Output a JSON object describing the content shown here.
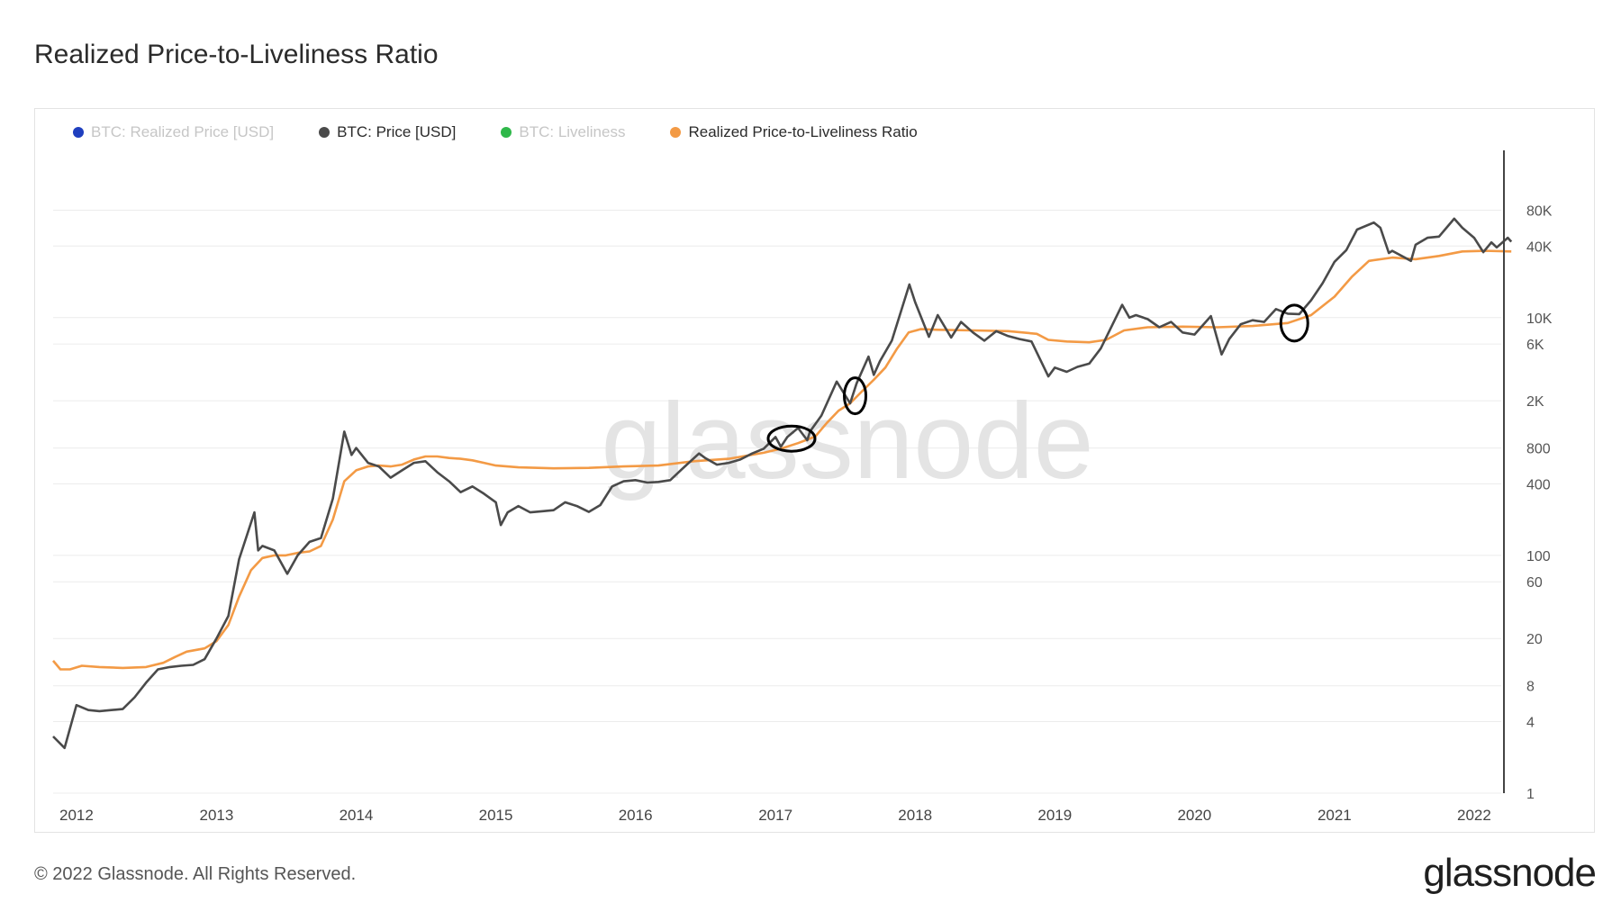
{
  "page": {
    "title": "Realized Price-to-Liveliness Ratio",
    "footer": "© 2022 Glassnode. All Rights Reserved.",
    "logo": "glassnode",
    "watermark": "glassnode"
  },
  "legend": [
    {
      "label": "BTC: Realized Price [USD]",
      "color": "#1f3fbf",
      "active": false
    },
    {
      "label": "BTC: Price [USD]",
      "color": "#4a4a4a",
      "active": true
    },
    {
      "label": "BTC: Liveliness",
      "color": "#2fb84a",
      "active": false
    },
    {
      "label": "Realized Price-to-Liveliness Ratio",
      "color": "#f39a45",
      "active": true
    }
  ],
  "chart_data": {
    "type": "line",
    "title": "Realized Price-to-Liveliness Ratio",
    "yscale": "log",
    "ylim": [
      1,
      200000
    ],
    "xlim": [
      "2011-11-01",
      "2022-04-10"
    ],
    "x_ticks": [
      "2012",
      "2013",
      "2014",
      "2015",
      "2016",
      "2017",
      "2018",
      "2019",
      "2020",
      "2021",
      "2022"
    ],
    "y_ticks": [
      {
        "value": 80000,
        "label": "80K"
      },
      {
        "value": 40000,
        "label": "40K"
      },
      {
        "value": 10000,
        "label": "10K"
      },
      {
        "value": 6000,
        "label": "6K"
      },
      {
        "value": 2000,
        "label": "2K"
      },
      {
        "value": 800,
        "label": "800"
      },
      {
        "value": 400,
        "label": "400"
      },
      {
        "value": 100,
        "label": "100"
      },
      {
        "value": 60,
        "label": "60"
      },
      {
        "value": 20,
        "label": "20"
      },
      {
        "value": 8,
        "label": "8"
      },
      {
        "value": 4,
        "label": "4"
      },
      {
        "value": 1,
        "label": "1"
      }
    ],
    "series": [
      {
        "name": "BTC: Price [USD]",
        "color": "#4a4a4a",
        "points": [
          [
            "2011-11-01",
            3.0
          ],
          [
            "2011-12-01",
            2.4
          ],
          [
            "2012-01-01",
            5.5
          ],
          [
            "2012-02-01",
            5.0
          ],
          [
            "2012-03-01",
            4.9
          ],
          [
            "2012-04-01",
            5.0
          ],
          [
            "2012-05-01",
            5.1
          ],
          [
            "2012-06-01",
            6.4
          ],
          [
            "2012-07-01",
            8.5
          ],
          [
            "2012-08-01",
            11.0
          ],
          [
            "2012-09-01",
            11.5
          ],
          [
            "2012-10-01",
            11.8
          ],
          [
            "2012-11-01",
            12.0
          ],
          [
            "2012-12-01",
            13.4
          ],
          [
            "2013-01-01",
            20.0
          ],
          [
            "2013-02-01",
            31.0
          ],
          [
            "2013-03-01",
            93.0
          ],
          [
            "2013-04-10",
            230.0
          ],
          [
            "2013-04-20",
            110.0
          ],
          [
            "2013-05-01",
            120.0
          ],
          [
            "2013-06-01",
            110.0
          ],
          [
            "2013-07-05",
            70.0
          ],
          [
            "2013-08-01",
            100.0
          ],
          [
            "2013-09-01",
            130.0
          ],
          [
            "2013-10-01",
            140.0
          ],
          [
            "2013-11-01",
            300.0
          ],
          [
            "2013-12-01",
            1100.0
          ],
          [
            "2013-12-20",
            700.0
          ],
          [
            "2014-01-01",
            800.0
          ],
          [
            "2014-02-01",
            600.0
          ],
          [
            "2014-03-01",
            560.0
          ],
          [
            "2014-04-01",
            450.0
          ],
          [
            "2014-05-01",
            520.0
          ],
          [
            "2014-06-01",
            600.0
          ],
          [
            "2014-07-01",
            620.0
          ],
          [
            "2014-08-01",
            500.0
          ],
          [
            "2014-09-01",
            420.0
          ],
          [
            "2014-10-01",
            340.0
          ],
          [
            "2014-11-01",
            380.0
          ],
          [
            "2014-12-01",
            330.0
          ],
          [
            "2015-01-01",
            280.0
          ],
          [
            "2015-01-14",
            180.0
          ],
          [
            "2015-02-01",
            230.0
          ],
          [
            "2015-03-01",
            260.0
          ],
          [
            "2015-04-01",
            230.0
          ],
          [
            "2015-05-01",
            235.0
          ],
          [
            "2015-06-01",
            240.0
          ],
          [
            "2015-07-01",
            280.0
          ],
          [
            "2015-08-01",
            260.0
          ],
          [
            "2015-09-01",
            232.0
          ],
          [
            "2015-10-01",
            265.0
          ],
          [
            "2015-11-01",
            380.0
          ],
          [
            "2015-12-01",
            420.0
          ],
          [
            "2016-01-01",
            430.0
          ],
          [
            "2016-02-01",
            410.0
          ],
          [
            "2016-03-01",
            415.0
          ],
          [
            "2016-04-01",
            430.0
          ],
          [
            "2016-05-01",
            530.0
          ],
          [
            "2016-06-15",
            720.0
          ],
          [
            "2016-07-01",
            660.0
          ],
          [
            "2016-08-01",
            580.0
          ],
          [
            "2016-09-01",
            600.0
          ],
          [
            "2016-10-01",
            640.0
          ],
          [
            "2016-11-01",
            720.0
          ],
          [
            "2016-12-01",
            790.0
          ],
          [
            "2017-01-01",
            990.0
          ],
          [
            "2017-01-15",
            820.0
          ],
          [
            "2017-02-01",
            990.0
          ],
          [
            "2017-03-01",
            1180.0
          ],
          [
            "2017-03-25",
            930.0
          ],
          [
            "2017-04-01",
            1100.0
          ],
          [
            "2017-05-01",
            1500.0
          ],
          [
            "2017-06-10",
            2900.0
          ],
          [
            "2017-07-15",
            1900.0
          ],
          [
            "2017-08-01",
            2800.0
          ],
          [
            "2017-09-01",
            4700.0
          ],
          [
            "2017-09-15",
            3300.0
          ],
          [
            "2017-10-01",
            4300.0
          ],
          [
            "2017-11-01",
            6400.0
          ],
          [
            "2017-12-17",
            19000.0
          ],
          [
            "2018-01-01",
            13500.0
          ],
          [
            "2018-02-06",
            6900.0
          ],
          [
            "2018-03-01",
            10500.0
          ],
          [
            "2018-04-05",
            6800.0
          ],
          [
            "2018-05-01",
            9200.0
          ],
          [
            "2018-06-01",
            7500.0
          ],
          [
            "2018-07-01",
            6400.0
          ],
          [
            "2018-08-01",
            7700.0
          ],
          [
            "2018-09-01",
            7000.0
          ],
          [
            "2018-10-01",
            6600.0
          ],
          [
            "2018-11-01",
            6300.0
          ],
          [
            "2018-12-15",
            3200.0
          ],
          [
            "2019-01-01",
            3800.0
          ],
          [
            "2019-02-01",
            3500.0
          ],
          [
            "2019-03-01",
            3850.0
          ],
          [
            "2019-04-01",
            4100.0
          ],
          [
            "2019-05-01",
            5500.0
          ],
          [
            "2019-06-26",
            12800.0
          ],
          [
            "2019-07-15",
            10000.0
          ],
          [
            "2019-08-01",
            10500.0
          ],
          [
            "2019-09-01",
            9700.0
          ],
          [
            "2019-10-01",
            8300.0
          ],
          [
            "2019-11-01",
            9200.0
          ],
          [
            "2019-12-01",
            7500.0
          ],
          [
            "2020-01-01",
            7200.0
          ],
          [
            "2020-02-13",
            10300.0
          ],
          [
            "2020-03-12",
            4900.0
          ],
          [
            "2020-04-01",
            6600.0
          ],
          [
            "2020-05-01",
            8800.0
          ],
          [
            "2020-06-01",
            9500.0
          ],
          [
            "2020-07-01",
            9200.0
          ],
          [
            "2020-08-01",
            11800.0
          ],
          [
            "2020-09-01",
            10800.0
          ],
          [
            "2020-10-01",
            10700.0
          ],
          [
            "2020-11-01",
            14000.0
          ],
          [
            "2020-12-01",
            19500.0
          ],
          [
            "2021-01-01",
            29500.0
          ],
          [
            "2021-02-01",
            37000.0
          ],
          [
            "2021-03-01",
            55000.0
          ],
          [
            "2021-04-14",
            63000.0
          ],
          [
            "2021-05-01",
            57000.0
          ],
          [
            "2021-05-23",
            35000.0
          ],
          [
            "2021-06-01",
            36500.0
          ],
          [
            "2021-07-20",
            30000.0
          ],
          [
            "2021-08-01",
            41000.0
          ],
          [
            "2021-09-01",
            47000.0
          ],
          [
            "2021-10-01",
            48000.0
          ],
          [
            "2021-11-10",
            68000.0
          ],
          [
            "2021-12-01",
            57000.0
          ],
          [
            "2022-01-01",
            47000.0
          ],
          [
            "2022-01-25",
            35500.0
          ],
          [
            "2022-02-15",
            43000.0
          ],
          [
            "2022-03-01",
            39000.0
          ],
          [
            "2022-03-30",
            47000.0
          ],
          [
            "2022-04-08",
            43500.0
          ]
        ]
      },
      {
        "name": "Realized Price-to-Liveliness Ratio",
        "color": "#f39a45",
        "points": [
          [
            "2011-11-01",
            13.0
          ],
          [
            "2011-11-20",
            11.0
          ],
          [
            "2011-12-15",
            11.0
          ],
          [
            "2012-01-15",
            11.8
          ],
          [
            "2012-03-01",
            11.5
          ],
          [
            "2012-05-01",
            11.3
          ],
          [
            "2012-07-01",
            11.5
          ],
          [
            "2012-08-15",
            12.5
          ],
          [
            "2012-09-15",
            14.0
          ],
          [
            "2012-10-15",
            15.5
          ],
          [
            "2012-12-01",
            16.5
          ],
          [
            "2013-01-01",
            19.0
          ],
          [
            "2013-02-01",
            26.0
          ],
          [
            "2013-03-01",
            45.0
          ],
          [
            "2013-04-01",
            75.0
          ],
          [
            "2013-05-01",
            95.0
          ],
          [
            "2013-06-01",
            100.0
          ],
          [
            "2013-07-01",
            100.0
          ],
          [
            "2013-08-01",
            105.0
          ],
          [
            "2013-09-01",
            108.0
          ],
          [
            "2013-10-01",
            120.0
          ],
          [
            "2013-11-01",
            200.0
          ],
          [
            "2013-12-01",
            420.0
          ],
          [
            "2014-01-01",
            520.0
          ],
          [
            "2014-02-01",
            560.0
          ],
          [
            "2014-03-01",
            570.0
          ],
          [
            "2014-04-01",
            560.0
          ],
          [
            "2014-05-01",
            580.0
          ],
          [
            "2014-06-01",
            640.0
          ],
          [
            "2014-07-01",
            680.0
          ],
          [
            "2014-08-01",
            680.0
          ],
          [
            "2014-09-01",
            660.0
          ],
          [
            "2014-10-01",
            650.0
          ],
          [
            "2014-11-01",
            630.0
          ],
          [
            "2014-12-01",
            600.0
          ],
          [
            "2015-01-01",
            570.0
          ],
          [
            "2015-03-01",
            550.0
          ],
          [
            "2015-06-01",
            540.0
          ],
          [
            "2015-09-01",
            545.0
          ],
          [
            "2015-12-01",
            560.0
          ],
          [
            "2016-03-01",
            570.0
          ],
          [
            "2016-06-01",
            620.0
          ],
          [
            "2016-09-01",
            650.0
          ],
          [
            "2016-12-01",
            730.0
          ],
          [
            "2017-01-15",
            790.0
          ],
          [
            "2017-03-01",
            880.0
          ],
          [
            "2017-04-15",
            1000.0
          ],
          [
            "2017-05-15",
            1300.0
          ],
          [
            "2017-06-15",
            1650.0
          ],
          [
            "2017-07-15",
            1900.0
          ],
          [
            "2017-08-15",
            2400.0
          ],
          [
            "2017-09-15",
            3000.0
          ],
          [
            "2017-10-15",
            3800.0
          ],
          [
            "2017-11-15",
            5500.0
          ],
          [
            "2017-12-15",
            7500.0
          ],
          [
            "2018-01-15",
            8000.0
          ],
          [
            "2018-03-01",
            7900.0
          ],
          [
            "2018-06-01",
            7800.0
          ],
          [
            "2018-09-01",
            7700.0
          ],
          [
            "2018-11-15",
            7300.0
          ],
          [
            "2018-12-15",
            6500.0
          ],
          [
            "2019-02-01",
            6300.0
          ],
          [
            "2019-04-01",
            6200.0
          ],
          [
            "2019-05-15",
            6500.0
          ],
          [
            "2019-07-01",
            7800.0
          ],
          [
            "2019-09-01",
            8300.0
          ],
          [
            "2019-12-01",
            8400.0
          ],
          [
            "2020-03-01",
            8300.0
          ],
          [
            "2020-06-01",
            8500.0
          ],
          [
            "2020-09-01",
            9000.0
          ],
          [
            "2020-11-01",
            10500.0
          ],
          [
            "2021-01-01",
            15000.0
          ],
          [
            "2021-02-15",
            22000.0
          ],
          [
            "2021-04-01",
            30000.0
          ],
          [
            "2021-06-01",
            32000.0
          ],
          [
            "2021-08-01",
            31000.0
          ],
          [
            "2021-10-01",
            33000.0
          ],
          [
            "2021-12-01",
            36000.0
          ],
          [
            "2022-02-01",
            36500.0
          ],
          [
            "2022-04-08",
            36000.0
          ]
        ]
      }
    ],
    "annotations": [
      {
        "type": "ellipse-marker",
        "date": "2017-02-12",
        "value": 960
      },
      {
        "type": "ellipse-marker",
        "date": "2017-07-28",
        "value": 2200
      },
      {
        "type": "ellipse-marker",
        "date": "2020-09-18",
        "value": 9000
      }
    ]
  }
}
